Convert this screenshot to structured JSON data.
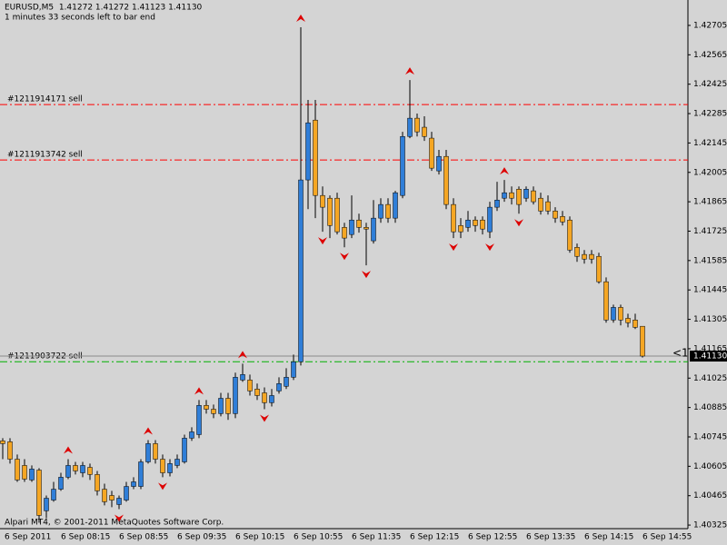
{
  "chart_data": {
    "type": "candlestick",
    "title": "EURUSD,M5  1.41272 1.41272 1.41123 1.41130",
    "subtitle": "1 minutes 33 seconds left to bar end",
    "footer": "Alpari MT4, © 2001-2011 MetaQuotes Software Corp.",
    "annotation": "<1",
    "categories": [
      "6 Sep 2011",
      null,
      null,
      null,
      null,
      null,
      null,
      null,
      "6 Sep 08:15",
      null,
      null,
      null,
      null,
      null,
      null,
      null,
      "6 Sep 08:55",
      null,
      null,
      null,
      null,
      null,
      null,
      null,
      "6 Sep 09:35",
      null,
      null,
      null,
      null,
      null,
      null,
      null,
      "6 Sep 10:15",
      null,
      null,
      null,
      null,
      null,
      null,
      null,
      "6 Sep 10:55",
      null,
      null,
      null,
      null,
      null,
      null,
      null,
      "6 Sep 11:35",
      null,
      null,
      null,
      null,
      null,
      null,
      null,
      "6 Sep 12:15",
      null,
      null,
      null,
      null,
      null,
      null,
      null,
      "6 Sep 12:55",
      null,
      null,
      null,
      null,
      null,
      null,
      null,
      "6 Sep 13:35",
      null,
      null,
      null,
      null,
      null,
      null,
      null,
      "6 Sep 14:15",
      null,
      null,
      null,
      null,
      null,
      null,
      null,
      "6 Sep 14:55"
    ],
    "open": [
      1.40726,
      1.40722,
      1.40639,
      1.40609,
      1.4054,
      1.40587,
      1.40393,
      1.40444,
      1.40496,
      1.40553,
      1.40609,
      1.40574,
      1.406,
      1.40566,
      1.40496,
      1.40466,
      1.40423,
      1.40444,
      1.40509,
      1.40509,
      1.40626,
      1.40713,
      1.40639,
      1.40574,
      1.40609,
      1.40626,
      1.40739,
      1.40756,
      1.40895,
      1.40877,
      1.40856,
      1.40929,
      1.40856,
      1.41016,
      1.41016,
      1.40973,
      1.40955,
      1.40908,
      1.40964,
      1.40986,
      1.41029,
      1.41103,
      1.41969,
      1.42254,
      1.41895,
      1.41882,
      1.41882,
      1.41743,
      1.41709,
      1.41778,
      1.41743,
      1.41679,
      1.41787,
      1.41852,
      1.41787,
      1.41895,
      1.42176,
      1.42263,
      1.4222,
      1.42168,
      1.42012,
      1.42081,
      1.41852,
      1.41752,
      1.41743,
      1.41778,
      1.41778,
      1.41722,
      1.41839,
      1.41882,
      1.41908,
      1.41925,
      1.41882,
      1.41917,
      1.41882,
      1.41865,
      1.41821,
      1.41795,
      1.41778,
      1.41648,
      1.41614,
      1.41614,
      1.41605,
      1.41484,
      1.41302,
      1.41362,
      1.4131,
      1.41302,
      1.41272
    ],
    "high": [
      1.40739,
      1.40739,
      1.40661,
      1.40639,
      1.40609,
      1.40596,
      1.40466,
      1.40531,
      1.40574,
      1.40639,
      1.40626,
      1.40626,
      1.40618,
      1.40583,
      1.40522,
      1.40488,
      1.40466,
      1.40531,
      1.40553,
      1.40639,
      1.4073,
      1.4073,
      1.40661,
      1.40639,
      1.40661,
      1.40756,
      1.40791,
      1.40921,
      1.40921,
      1.40899,
      1.40955,
      1.40955,
      1.41051,
      1.41094,
      1.41042,
      1.40999,
      1.40981,
      1.40973,
      1.41029,
      1.41072,
      1.41137,
      1.42696,
      1.4235,
      1.4235,
      1.41938,
      1.41895,
      1.41908,
      1.41765,
      1.41895,
      1.41808,
      1.41765,
      1.41873,
      1.41882,
      1.41882,
      1.41917,
      1.42198,
      1.42445,
      1.42285,
      1.42272,
      1.42198,
      1.42112,
      1.42112,
      1.41882,
      1.41787,
      1.41821,
      1.41795,
      1.41795,
      1.41865,
      1.4196,
      1.41969,
      1.41938,
      1.41938,
      1.41938,
      1.41938,
      1.41908,
      1.41895,
      1.41839,
      1.41821,
      1.41795,
      1.41666,
      1.41635,
      1.41635,
      1.41622,
      1.41505,
      1.41375,
      1.41375,
      1.41332,
      1.41332,
      1.41272
    ],
    "low": [
      1.40639,
      1.40618,
      1.40531,
      1.40531,
      1.40531,
      1.40336,
      1.40358,
      1.40436,
      1.40488,
      1.40544,
      1.40566,
      1.40553,
      1.4054,
      1.40466,
      1.40419,
      1.4041,
      1.40401,
      1.40436,
      1.40496,
      1.40496,
      1.40618,
      1.40618,
      1.40553,
      1.40557,
      1.40596,
      1.40618,
      1.40726,
      1.40739,
      1.40856,
      1.40834,
      1.40843,
      1.40826,
      1.40834,
      1.41007,
      1.40942,
      1.40921,
      1.40877,
      1.4089,
      1.40951,
      1.40973,
      1.41016,
      1.41085,
      1.4183,
      1.41787,
      1.41722,
      1.41692,
      1.41709,
      1.41648,
      1.41692,
      1.41718,
      1.41562,
      1.41666,
      1.41765,
      1.41765,
      1.41765,
      1.41882,
      1.42168,
      1.42176,
      1.42155,
      1.42012,
      1.41995,
      1.4183,
      1.41692,
      1.41692,
      1.41722,
      1.41722,
      1.41709,
      1.41692,
      1.41821,
      1.41865,
      1.41852,
      1.41808,
      1.41865,
      1.41852,
      1.41804,
      1.41804,
      1.41765,
      1.41752,
      1.41622,
      1.41579,
      1.4157,
      1.4157,
      1.41475,
      1.41289,
      1.41289,
      1.41276,
      1.41267,
      1.41259,
      1.41123
    ],
    "close": [
      1.40713,
      1.40639,
      1.4054,
      1.40544,
      1.40592,
      1.40371,
      1.40453,
      1.40496,
      1.40553,
      1.40609,
      1.40583,
      1.40609,
      1.40566,
      1.40488,
      1.40436,
      1.40444,
      1.40453,
      1.40509,
      1.40531,
      1.40626,
      1.40713,
      1.40639,
      1.40574,
      1.40618,
      1.40639,
      1.40739,
      1.40769,
      1.40895,
      1.40877,
      1.40856,
      1.40929,
      1.40856,
      1.41029,
      1.41042,
      1.40964,
      1.40942,
      1.40908,
      1.40942,
      1.40999,
      1.41029,
      1.41103,
      1.41969,
      1.42241,
      1.41895,
      1.41839,
      1.41752,
      1.41722,
      1.41692,
      1.41778,
      1.41743,
      1.41735,
      1.41787,
      1.41852,
      1.41787,
      1.41908,
      1.42176,
      1.42263,
      1.42198,
      1.42176,
      1.42025,
      1.42081,
      1.41852,
      1.41722,
      1.41722,
      1.41778,
      1.41752,
      1.41735,
      1.41839,
      1.41873,
      1.41908,
      1.41882,
      1.41852,
      1.41925,
      1.41865,
      1.41821,
      1.41821,
      1.41787,
      1.41769,
      1.41635,
      1.41605,
      1.41592,
      1.41592,
      1.41484,
      1.41302,
      1.41362,
      1.41302,
      1.41289,
      1.41267,
      1.4113
    ],
    "fractal_up": [
      null,
      null,
      null,
      null,
      null,
      null,
      null,
      null,
      null,
      1.40639,
      null,
      null,
      null,
      null,
      null,
      null,
      null,
      null,
      null,
      null,
      1.4073,
      null,
      null,
      null,
      null,
      null,
      null,
      1.40921,
      null,
      null,
      null,
      null,
      null,
      1.41094,
      null,
      null,
      null,
      null,
      null,
      null,
      null,
      1.42696,
      null,
      null,
      null,
      null,
      null,
      null,
      null,
      null,
      null,
      null,
      null,
      null,
      null,
      null,
      1.42445,
      null,
      null,
      null,
      null,
      null,
      null,
      null,
      null,
      null,
      null,
      null,
      null,
      1.41969,
      null,
      null,
      null,
      null,
      null,
      null,
      null,
      null,
      null,
      null,
      null,
      null,
      null,
      null,
      null,
      null,
      null,
      null,
      null
    ],
    "fractal_down": [
      null,
      null,
      null,
      null,
      null,
      null,
      null,
      null,
      null,
      null,
      null,
      null,
      null,
      null,
      null,
      null,
      1.40401,
      null,
      null,
      null,
      null,
      null,
      1.40553,
      null,
      null,
      null,
      null,
      null,
      null,
      null,
      null,
      null,
      null,
      null,
      null,
      null,
      1.40877,
      null,
      null,
      null,
      null,
      null,
      null,
      null,
      1.41722,
      null,
      null,
      1.41648,
      null,
      null,
      1.41562,
      null,
      null,
      null,
      null,
      null,
      null,
      null,
      null,
      null,
      null,
      null,
      1.41692,
      null,
      null,
      null,
      null,
      1.41692,
      null,
      null,
      null,
      1.41808,
      null,
      null,
      null,
      null,
      null,
      null,
      null,
      null,
      null,
      null,
      null,
      null,
      null,
      null,
      null,
      null,
      null
    ],
    "up_color": "#2f7ed8",
    "down_color": "#f5a623",
    "fractal_color": "#dd0000",
    "order_lines": [
      {
        "label": "#1211914171 sell",
        "value": 1.42328,
        "color": "#ff0000"
      },
      {
        "label": "#1211913742 sell",
        "value": 1.42064,
        "color": "#ff0000"
      },
      {
        "label": "#1211903722 sell",
        "value": 1.41103,
        "color": "#00b000"
      }
    ],
    "bid": {
      "value": 1.4113,
      "label": "1.41130"
    },
    "ylim": [
      1.40308,
      1.42826
    ],
    "yticks": [
      1.42705,
      1.42565,
      1.42425,
      1.42285,
      1.42145,
      1.42005,
      1.41865,
      1.41725,
      1.41585,
      1.41445,
      1.41305,
      1.41165,
      1.41025,
      1.40885,
      1.40745,
      1.40605,
      1.40465,
      1.40325
    ]
  }
}
